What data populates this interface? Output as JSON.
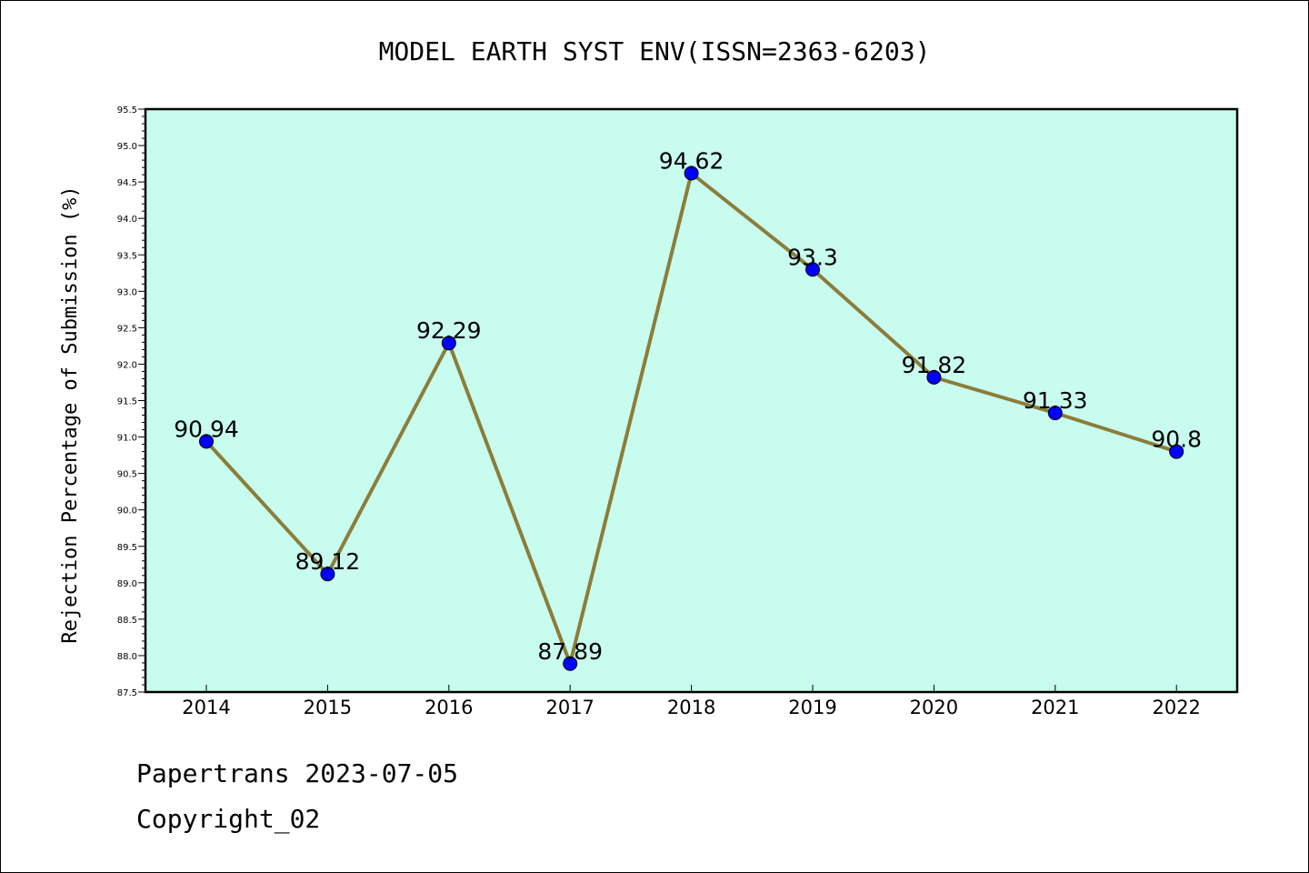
{
  "chart_data": {
    "type": "line",
    "title": "MODEL EARTH SYST ENV(ISSN=2363-6203)",
    "xlabel": "",
    "ylabel": "Rejection Percentage of Submission (%)",
    "categories": [
      "2014",
      "2015",
      "2016",
      "2017",
      "2018",
      "2019",
      "2020",
      "2021",
      "2022"
    ],
    "series": [
      {
        "values": [
          90.94,
          89.12,
          92.29,
          87.89,
          94.62,
          93.3,
          91.82,
          91.33,
          90.8
        ],
        "data_labels": [
          "90.94",
          "89.12",
          "92.29",
          "87.89",
          "94.62",
          "93.3",
          "91.82",
          "91.33",
          "90.8"
        ]
      }
    ],
    "ylim": [
      87.5,
      95.5
    ],
    "yticks": [
      "87.5",
      "88.0",
      "88.5",
      "89.0",
      "89.5",
      "90.0",
      "90.5",
      "91.0",
      "91.5",
      "92.0",
      "92.5",
      "93.0",
      "93.5",
      "94.0",
      "94.5",
      "95.0",
      "95.5"
    ],
    "grid": false,
    "legend": "none",
    "colors": {
      "plot_background": "#c8fcee",
      "line": "#8b7d3a",
      "marker": "#0000ff"
    }
  },
  "footer": {
    "line1": "Papertrans 2023-07-05",
    "line2": "Copyright_02"
  }
}
